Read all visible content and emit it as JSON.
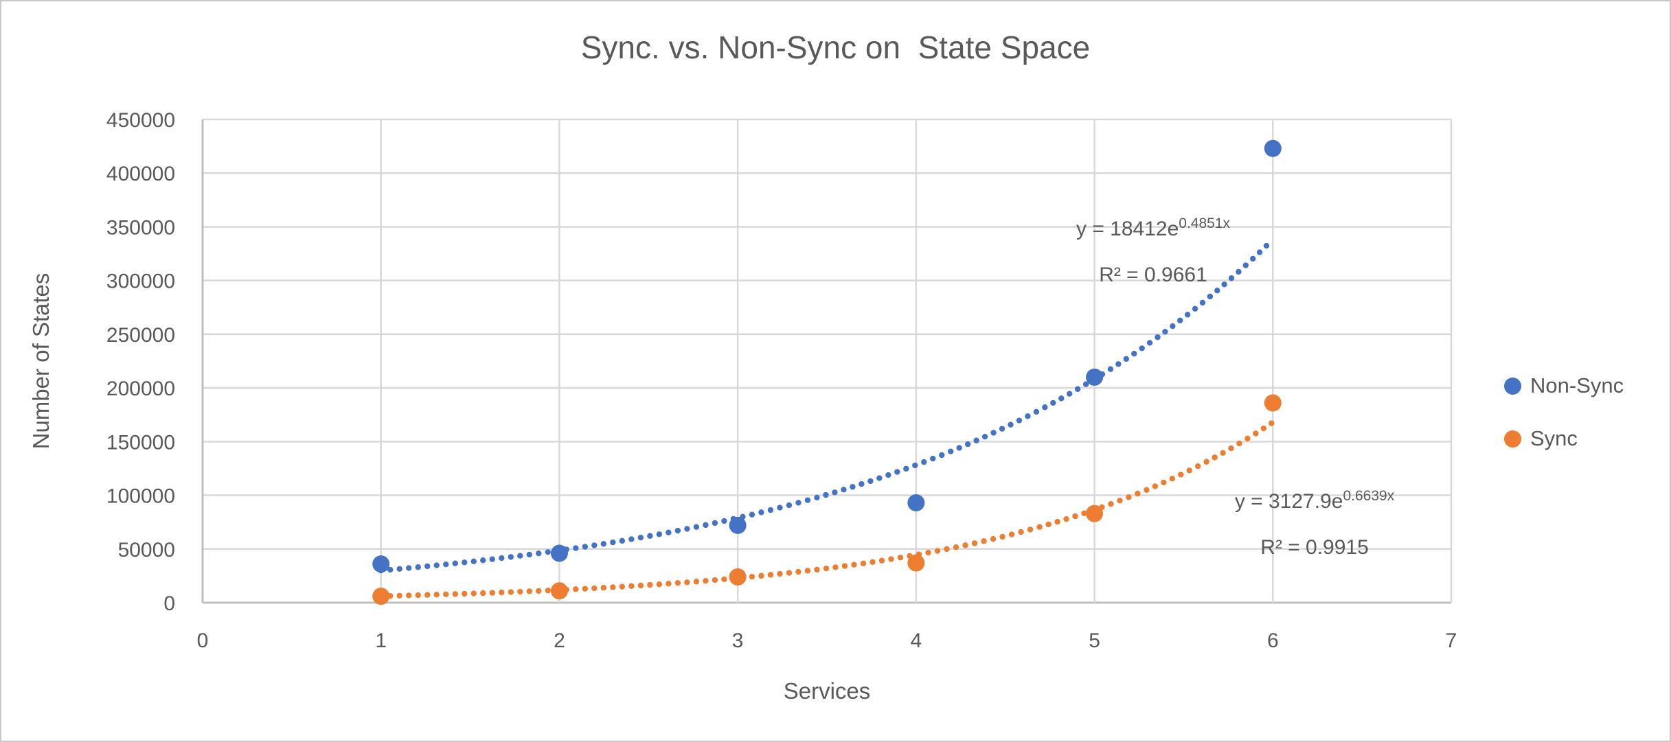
{
  "chart_data": {
    "type": "scatter",
    "title": "Sync. vs. Non-Sync on  State Space",
    "xlabel": "Services",
    "ylabel": "Number of States",
    "xlim": [
      0,
      7
    ],
    "ylim": [
      0,
      450000
    ],
    "x_ticks": [
      0,
      1,
      2,
      3,
      4,
      5,
      6,
      7
    ],
    "y_ticks": [
      0,
      50000,
      100000,
      150000,
      200000,
      250000,
      300000,
      350000,
      400000,
      450000
    ],
    "grid": true,
    "legend_position": "right",
    "x": [
      1,
      2,
      3,
      4,
      5,
      6
    ],
    "series": [
      {
        "name": "Non-Sync",
        "color": "#4472C4",
        "values": [
          36000,
          46000,
          72000,
          93000,
          210000,
          423000
        ],
        "trendline": {
          "type": "exponential",
          "a": 18412,
          "b": 0.4851,
          "equation_base": "y = 18412e",
          "equation_exponent": "0.4851x",
          "r2_label": "R² = 0.9661"
        }
      },
      {
        "name": "Sync",
        "color": "#ED7D31",
        "values": [
          6000,
          11000,
          24000,
          37000,
          83000,
          186000
        ],
        "trendline": {
          "type": "exponential",
          "a": 3127.9,
          "b": 0.6639,
          "equation_base": "y = 3127.9e",
          "equation_exponent": "0.6639x",
          "r2_label": "R² = 0.9915"
        }
      }
    ],
    "colors": {
      "text": "#595959",
      "gridline": "#D9D9D9",
      "axis": "#BFBFBF",
      "border": "#C8C8C8"
    }
  }
}
